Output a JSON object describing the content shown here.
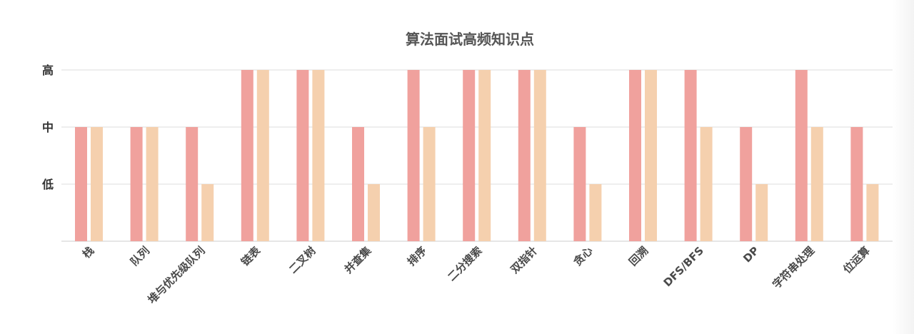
{
  "chart_data": {
    "type": "bar",
    "title": "算法面试高频知识点",
    "xlabel": "",
    "ylabel": "",
    "y_tick_labels": [
      "低",
      "中",
      "高"
    ],
    "ylim": [
      0,
      3
    ],
    "categories": [
      "栈",
      "队列",
      "堆与优先级队列",
      "链表",
      "二叉树",
      "并查集",
      "排序",
      "二分搜索",
      "双指针",
      "贪心",
      "回溯",
      "DFS/BFS",
      "DP",
      "字符串处理",
      "位运算"
    ],
    "series": [
      {
        "values": [
          2,
          2,
          2,
          3,
          3,
          2,
          3,
          3,
          3,
          2,
          3,
          3,
          2,
          3,
          2
        ],
        "color": "#f0a19d"
      },
      {
        "values": [
          2,
          2,
          1,
          3,
          3,
          1,
          2,
          3,
          3,
          1,
          3,
          2,
          1,
          2,
          1
        ],
        "color": "#f5d0ae"
      }
    ],
    "grid": true,
    "legend": "none"
  }
}
